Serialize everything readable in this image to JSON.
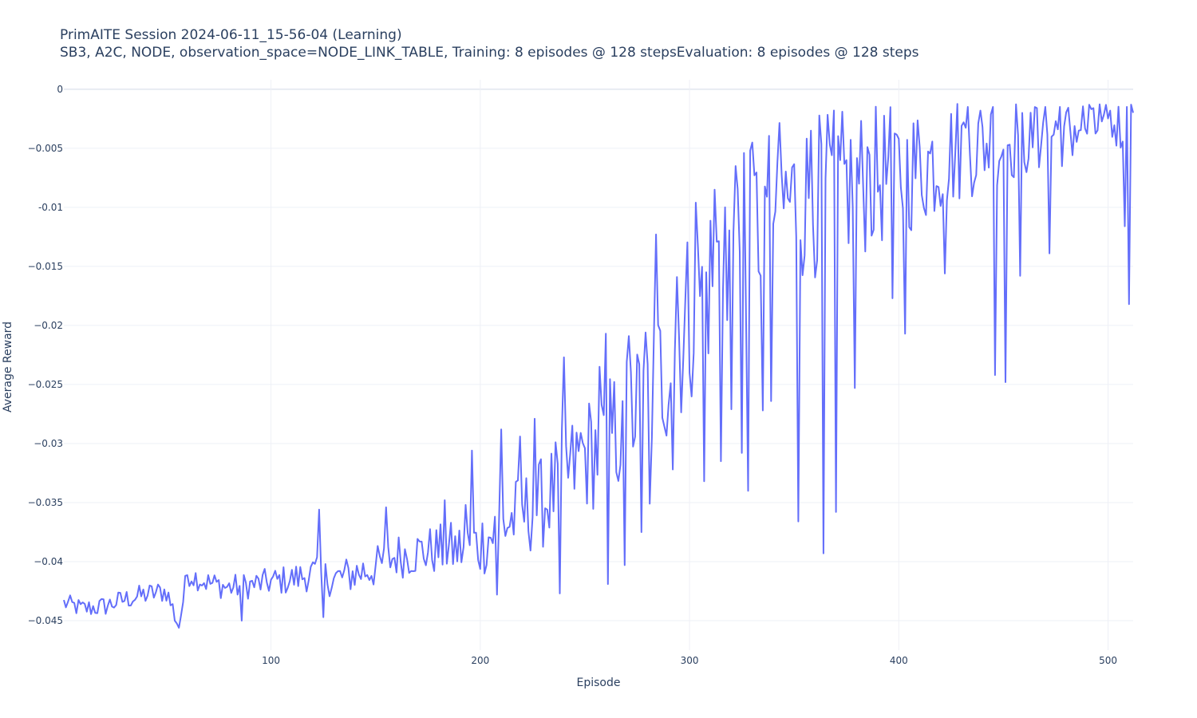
{
  "chart_data": {
    "type": "line",
    "title": "PrimAITE Session 2024-06-11_15-56-04 (Learning)",
    "subtitle": "SB3, A2C, NODE, observation_space=NODE_LINK_TABLE, Training: 8 episodes @ 128 stepsEvaluation: 8 episodes @ 128 steps",
    "xlabel": "Episode",
    "ylabel": "Average Reward",
    "xlim": [
      1,
      512
    ],
    "ylim": [
      -0.0475,
      0.0008
    ],
    "x_ticks": [
      100,
      200,
      300,
      400,
      500
    ],
    "x_tick_labels": [
      "100",
      "200",
      "300",
      "400",
      "500"
    ],
    "y_ticks": [
      0,
      -0.005,
      -0.01,
      -0.015,
      -0.02,
      -0.025,
      -0.03,
      -0.035,
      -0.04,
      -0.045
    ],
    "y_tick_labels": [
      "0",
      "−0.005",
      "-0.01",
      "−0.015",
      "−0.02",
      "−0.025",
      "−0.03",
      "−0.035",
      "−0.04",
      "−0.045"
    ],
    "grid": true,
    "legend": "none",
    "series": [
      {
        "color": "#636efa",
        "keypoints_x": [
          1,
          10,
          20,
          30,
          40,
          50,
          56,
          60,
          70,
          80,
          90,
          100,
          110,
          120,
          130,
          140,
          150,
          160,
          170,
          180,
          190,
          200,
          210,
          220,
          230,
          240,
          250,
          260,
          270,
          280,
          290,
          300,
          310,
          320,
          330,
          340,
          350,
          360,
          370,
          380,
          390,
          400,
          410,
          420,
          430,
          440,
          450,
          460,
          470,
          480,
          490,
          500,
          505,
          512
        ],
        "keypoints_y": [
          -0.0435,
          -0.044,
          -0.0438,
          -0.0432,
          -0.0428,
          -0.0425,
          -0.0455,
          -0.041,
          -0.0418,
          -0.0422,
          -0.042,
          -0.0417,
          -0.0415,
          -0.041,
          -0.0415,
          -0.041,
          -0.0405,
          -0.0395,
          -0.0392,
          -0.039,
          -0.039,
          -0.0385,
          -0.037,
          -0.036,
          -0.035,
          -0.033,
          -0.031,
          -0.03,
          -0.028,
          -0.026,
          -0.023,
          -0.019,
          -0.016,
          -0.013,
          -0.012,
          -0.01,
          -0.0095,
          -0.009,
          -0.0085,
          -0.008,
          -0.0075,
          -0.007,
          -0.0065,
          -0.0058,
          -0.005,
          -0.0045,
          -0.0042,
          -0.004,
          -0.0038,
          -0.0035,
          -0.0032,
          -0.003,
          -0.0028,
          -0.002
        ],
        "amplitude_x": [
          1,
          100,
          180,
          230,
          270,
          300,
          340,
          380,
          420,
          460,
          512
        ],
        "amplitude_y": [
          0.0008,
          0.0012,
          0.0022,
          0.004,
          0.006,
          0.008,
          0.0075,
          0.0065,
          0.005,
          0.0035,
          0.0025
        ],
        "peak_points": [
          [
            56,
            -0.0456
          ],
          [
            86,
            -0.045
          ],
          [
            123,
            -0.0356
          ],
          [
            125,
            -0.0447
          ],
          [
            155,
            -0.0354
          ],
          [
            183,
            -0.0348
          ],
          [
            193,
            -0.0352
          ],
          [
            196,
            -0.0306
          ],
          [
            208,
            -0.0428
          ],
          [
            210,
            -0.0288
          ],
          [
            219,
            -0.0294
          ],
          [
            226,
            -0.0279
          ],
          [
            238,
            -0.0427
          ],
          [
            240,
            -0.0227
          ],
          [
            248,
            -0.0291
          ],
          [
            257,
            -0.0235
          ],
          [
            260,
            -0.0207
          ],
          [
            261,
            -0.0419
          ],
          [
            268,
            -0.0264
          ],
          [
            269,
            -0.0403
          ],
          [
            271,
            -0.0209
          ],
          [
            277,
            -0.0375
          ],
          [
            279,
            -0.0206
          ],
          [
            281,
            -0.0351
          ],
          [
            284,
            -0.0123
          ],
          [
            292,
            -0.0322
          ],
          [
            294,
            -0.0159
          ],
          [
            303,
            -0.0096
          ],
          [
            307,
            -0.0332
          ],
          [
            312,
            -0.0085
          ],
          [
            315,
            -0.0315
          ],
          [
            317,
            -0.01
          ],
          [
            320,
            -0.0271
          ],
          [
            322,
            -0.0065
          ],
          [
            325,
            -0.0308
          ],
          [
            326,
            -0.0054
          ],
          [
            328,
            -0.034
          ],
          [
            329,
            -0.0052
          ],
          [
            335,
            -0.0272
          ],
          [
            337,
            -0.0091
          ],
          [
            339,
            -0.0264
          ],
          [
            342,
            -0.0062
          ],
          [
            352,
            -0.0366
          ],
          [
            358,
            -0.0035
          ],
          [
            364,
            -0.0393
          ],
          [
            369,
            -0.0018
          ],
          [
            370,
            -0.0358
          ],
          [
            372,
            -0.006
          ],
          [
            379,
            -0.0253
          ],
          [
            385,
            -0.0049
          ],
          [
            397,
            -0.0177
          ],
          [
            400,
            -0.0042
          ],
          [
            403,
            -0.0207
          ],
          [
            422,
            -0.0156
          ],
          [
            431,
            -0.0028
          ],
          [
            433,
            -0.0015
          ],
          [
            445,
            -0.0015
          ],
          [
            446,
            -0.0242
          ],
          [
            451,
            -0.0248
          ],
          [
            458,
            -0.0158
          ],
          [
            466,
            -0.0016
          ],
          [
            470,
            -0.0015
          ],
          [
            472,
            -0.0139
          ],
          [
            477,
            -0.0015
          ],
          [
            486,
            -0.0035
          ],
          [
            493,
            -0.0016
          ],
          [
            508,
            -0.0116
          ],
          [
            509,
            -0.0015
          ],
          [
            510,
            -0.0182
          ],
          [
            511,
            -0.0013
          ],
          [
            512,
            -0.002
          ]
        ]
      }
    ]
  }
}
